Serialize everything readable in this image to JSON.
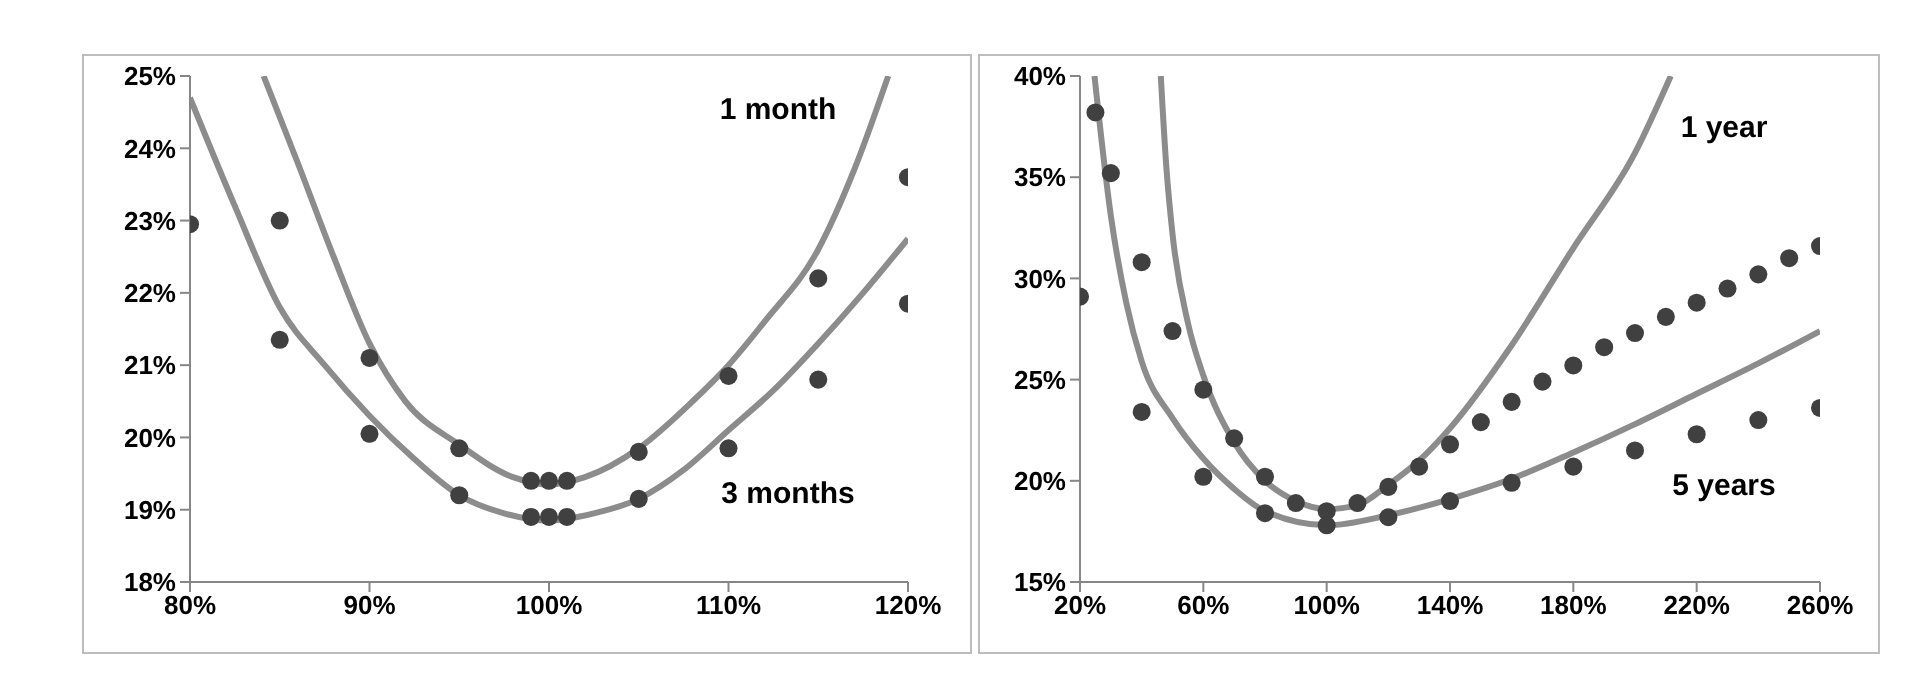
{
  "chart_data": [
    {
      "type": "scatter",
      "xlim": [
        80,
        120
      ],
      "ylim": [
        18,
        25
      ],
      "xticks": [
        {
          "value": 80,
          "label": "80%"
        },
        {
          "value": 90,
          "label": "90%"
        },
        {
          "value": 100,
          "label": "100%"
        },
        {
          "value": 110,
          "label": "110%"
        },
        {
          "value": 120,
          "label": "120%"
        }
      ],
      "yticks": [
        {
          "value": 18,
          "label": "18%"
        },
        {
          "value": 19,
          "label": "19%"
        },
        {
          "value": 20,
          "label": "20%"
        },
        {
          "value": 21,
          "label": "21%"
        },
        {
          "value": 22,
          "label": "22%"
        },
        {
          "value": 23,
          "label": "23%"
        },
        {
          "value": 24,
          "label": "24%"
        },
        {
          "value": 25,
          "label": "25%"
        }
      ],
      "marker": "circle",
      "series": [
        {
          "color": "#404040",
          "x": [
            85,
            90,
            95,
            99,
            100,
            101,
            105,
            110,
            115,
            120
          ],
          "values": [
            23.0,
            21.1,
            19.85,
            19.4,
            19.4,
            19.4,
            19.8,
            20.85,
            22.2,
            23.6
          ]
        },
        {
          "color": "#404040",
          "x": [
            80,
            85,
            90,
            95,
            99,
            100,
            101,
            105,
            110,
            115,
            120
          ],
          "values": [
            22.95,
            21.35,
            20.05,
            19.2,
            18.9,
            18.9,
            18.9,
            19.15,
            19.85,
            20.8,
            21.85
          ]
        },
        {
          "type": "line",
          "marker": "none",
          "color": "#8c8c8c",
          "x": [
            84.1,
            86,
            88,
            90,
            92,
            95,
            98,
            100,
            102,
            105,
            108,
            110,
            112,
            115,
            117,
            118.9
          ],
          "values": [
            25,
            23.8,
            22.5,
            21.3,
            20.5,
            19.9,
            19.45,
            19.35,
            19.45,
            19.85,
            20.5,
            21.0,
            21.6,
            22.6,
            23.7,
            25
          ]
        },
        {
          "type": "line",
          "marker": "none",
          "color": "#8c8c8c",
          "x": [
            80,
            82.5,
            85,
            87.5,
            90,
            92.5,
            95,
            97.5,
            100,
            102.5,
            105,
            107.5,
            110,
            112.5,
            115,
            117.5,
            120
          ],
          "values": [
            24.7,
            23.2,
            21.8,
            21.0,
            20.3,
            19.7,
            19.2,
            18.95,
            18.85,
            18.95,
            19.15,
            19.55,
            20.1,
            20.65,
            21.3,
            22.0,
            22.75
          ]
        }
      ],
      "annotations": [
        "1 month",
        "3 months"
      ]
    },
    {
      "type": "scatter",
      "xlim": [
        20,
        260
      ],
      "ylim": [
        15,
        40
      ],
      "xticks": [
        {
          "value": 20,
          "label": "20%"
        },
        {
          "value": 60,
          "label": "60%"
        },
        {
          "value": 100,
          "label": "100%"
        },
        {
          "value": 140,
          "label": "140%"
        },
        {
          "value": 180,
          "label": "180%"
        },
        {
          "value": 220,
          "label": "220%"
        },
        {
          "value": 260,
          "label": "260%"
        }
      ],
      "yticks": [
        {
          "value": 15,
          "label": "15%"
        },
        {
          "value": 20,
          "label": "20%"
        },
        {
          "value": 25,
          "label": "25%"
        },
        {
          "value": 30,
          "label": "30%"
        },
        {
          "value": 35,
          "label": "35%"
        },
        {
          "value": 40,
          "label": "40%"
        }
      ],
      "marker": "circle",
      "series": [
        {
          "color": "#404040",
          "x": [
            25,
            30,
            40,
            50,
            60,
            70,
            80,
            90,
            100,
            110,
            120,
            130,
            140,
            150,
            160,
            170,
            180,
            190,
            200,
            210,
            220,
            230,
            240,
            250,
            260
          ],
          "values": [
            38.2,
            35.2,
            30.8,
            27.4,
            24.5,
            22.1,
            20.2,
            18.9,
            18.5,
            18.9,
            19.7,
            20.7,
            21.8,
            22.9,
            23.9,
            24.9,
            25.7,
            26.6,
            27.3,
            28.1,
            28.8,
            29.5,
            30.2,
            31.0,
            31.6
          ]
        },
        {
          "color": "#404040",
          "x": [
            20,
            40,
            60,
            80,
            100,
            120,
            140,
            160,
            180,
            200,
            220,
            240,
            260
          ],
          "values": [
            29.1,
            23.4,
            20.2,
            18.4,
            17.8,
            18.2,
            19.0,
            19.9,
            20.7,
            21.5,
            22.3,
            23.0,
            23.6
          ]
        },
        {
          "type": "line",
          "marker": "none",
          "color": "#8c8c8c",
          "x": [
            46.2,
            48,
            50,
            55,
            60,
            70,
            80,
            90,
            100,
            110,
            120,
            130,
            140,
            160,
            180,
            200,
            211.6
          ],
          "values": [
            40,
            35.5,
            32.2,
            27.8,
            25.2,
            21.9,
            20.0,
            19.0,
            18.6,
            18.8,
            19.8,
            21.0,
            22.6,
            26.7,
            31.5,
            36.2,
            40
          ]
        },
        {
          "type": "line",
          "marker": "none",
          "color": "#8c8c8c",
          "x": [
            24.7,
            30,
            35,
            40,
            50,
            60,
            70,
            80,
            100,
            120,
            140,
            160,
            180,
            200,
            220,
            240,
            260
          ],
          "values": [
            40,
            33.1,
            28.8,
            25.9,
            23.1,
            21.1,
            19.6,
            18.5,
            17.8,
            18.3,
            19.1,
            20.1,
            21.4,
            22.8,
            24.3,
            25.8,
            27.4
          ]
        }
      ],
      "annotations": [
        "1 year",
        "5 years"
      ]
    }
  ]
}
